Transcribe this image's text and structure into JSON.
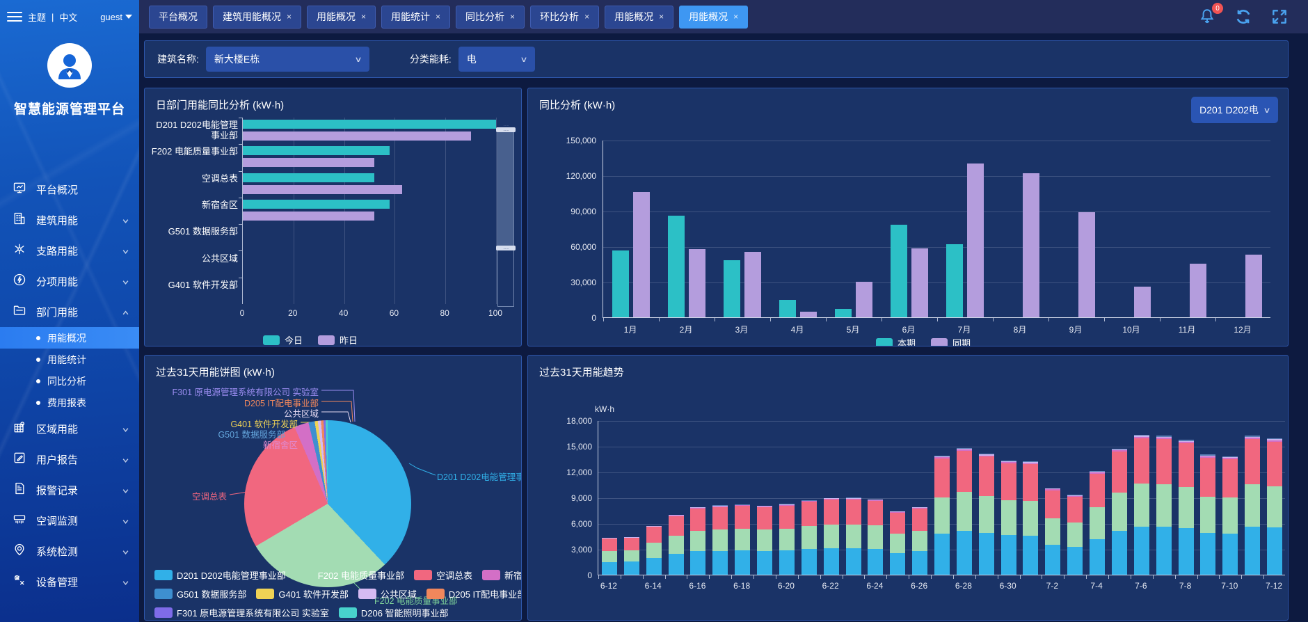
{
  "sidebar": {
    "title": "智慧能源管理平台",
    "theme_label": "主题",
    "lang_label": "中文",
    "user": "guest",
    "menu": [
      {
        "label": "平台概况",
        "icon": "monitor-icon",
        "chevron": null
      },
      {
        "label": "建筑用能",
        "icon": "building-icon",
        "chevron": "down"
      },
      {
        "label": "支路用能",
        "icon": "branch-icon",
        "chevron": "down"
      },
      {
        "label": "分项用能",
        "icon": "subitem-icon",
        "chevron": "down"
      },
      {
        "label": "部门用能",
        "icon": "folder-icon",
        "chevron": "up",
        "children": [
          {
            "label": "用能概况",
            "active": true
          },
          {
            "label": "用能统计",
            "active": false
          },
          {
            "label": "同比分析",
            "active": false
          },
          {
            "label": "费用报表",
            "active": false
          }
        ]
      },
      {
        "label": "区域用能",
        "icon": "region-icon",
        "chevron": "down"
      },
      {
        "label": "用户报告",
        "icon": "report-icon",
        "chevron": "down"
      },
      {
        "label": "报警记录",
        "icon": "record-icon",
        "chevron": "down"
      },
      {
        "label": "空调监测",
        "icon": "ac-icon",
        "chevron": "down"
      },
      {
        "label": "系统检测",
        "icon": "system-icon",
        "chevron": "down"
      },
      {
        "label": "设备管理",
        "icon": "device-icon",
        "chevron": "down"
      }
    ]
  },
  "topbar": {
    "tabs": [
      {
        "label": "平台概况",
        "closable": false,
        "active": false
      },
      {
        "label": "建筑用能概况",
        "closable": true,
        "active": false
      },
      {
        "label": "用能概况",
        "closable": true,
        "active": false
      },
      {
        "label": "用能统计",
        "closable": true,
        "active": false
      },
      {
        "label": "同比分析",
        "closable": true,
        "active": false
      },
      {
        "label": "环比分析",
        "closable": true,
        "active": false
      },
      {
        "label": "用能概况",
        "closable": true,
        "active": false
      },
      {
        "label": "用能概况",
        "closable": true,
        "active": true
      }
    ],
    "bell_badge": "0"
  },
  "filters": {
    "building_label": "建筑名称:",
    "building_value": "新大楼E栋",
    "energy_label": "分类能耗:",
    "energy_value": "电"
  },
  "colors": {
    "teal": "#2cc0c6",
    "purple": "#b49ddd",
    "accent_tab": "#3e97f2",
    "pie": [
      "#31b0e8",
      "#a3dcb3",
      "#f1677f",
      "#d36fc6",
      "#3e8fd0",
      "#f0d355",
      "#d5baf2",
      "#f0875c",
      "#7e6be8",
      "#48d2cc"
    ],
    "stack_extra": [
      "#d36fc6",
      "#cbb4ee",
      "#5b7fb5"
    ]
  },
  "chart_data": [
    {
      "id": "dept-today-vs-yesterday",
      "type": "bar",
      "orientation": "horizontal",
      "title": "日部门用能同比分析 (kW·h)",
      "categories": [
        "D201 D202电能管理事业部",
        "F202 电能质量事业部",
        "空调总表",
        "新宿舍区",
        "G501 数据服务部",
        "公共区域",
        "G401 软件开发部"
      ],
      "series": [
        {
          "name": "今日",
          "color": "#2cc0c6",
          "values": [
            100,
            58,
            52,
            58,
            0,
            0,
            0
          ]
        },
        {
          "name": "昨日",
          "color": "#b49ddd",
          "values": [
            90,
            52,
            63,
            52,
            0,
            0,
            0
          ]
        }
      ],
      "xlim": [
        0,
        100
      ],
      "xticks": [
        0,
        20,
        40,
        60,
        80,
        100
      ],
      "legend_position": "bottom",
      "grid": true
    },
    {
      "id": "year-on-year",
      "type": "bar",
      "orientation": "vertical",
      "title": "同比分析 (kW·h)",
      "selector_value": "D201 D202电",
      "categories": [
        "1月",
        "2月",
        "3月",
        "4月",
        "5月",
        "6月",
        "7月",
        "8月",
        "9月",
        "10月",
        "11月",
        "12月"
      ],
      "series": [
        {
          "name": "本期",
          "color": "#2cc0c6",
          "values": [
            56500,
            86000,
            48000,
            15000,
            7000,
            78500,
            61500,
            0,
            0,
            0,
            0,
            0
          ]
        },
        {
          "name": "同期",
          "color": "#b49ddd",
          "values": [
            106000,
            57500,
            55500,
            4500,
            30000,
            58000,
            130000,
            121500,
            89000,
            26000,
            45500,
            53000
          ]
        }
      ],
      "ylim": [
        0,
        150000
      ],
      "ystep": 30000,
      "legend_position": "bottom",
      "grid": true
    },
    {
      "id": "last-31-days-pie",
      "type": "pie",
      "title": "过去31天用能饼图 (kW·h)",
      "slices": [
        {
          "name": "D201 D202电能管理事业部",
          "percent": 38.0
        },
        {
          "name": "F202 电能质量事业部",
          "percent": 28.5
        },
        {
          "name": "空调总表",
          "percent": 27.0
        },
        {
          "name": "新宿舍区",
          "percent": 2.8
        },
        {
          "name": "G501 数据服务部",
          "percent": 1.2
        },
        {
          "name": "G401 软件开发部",
          "percent": 0.6
        },
        {
          "name": "公共区域",
          "percent": 0.6
        },
        {
          "name": "D205 IT配电事业部",
          "percent": 0.5
        },
        {
          "name": "F301 原电源管理系统有限公司 实验室",
          "percent": 0.4
        },
        {
          "name": "D206 智能照明事业部",
          "percent": 0.4
        }
      ],
      "callout_labels": [
        "F301 原电源管理系统有限公司 实验室",
        "D205 IT配电事业部",
        "公共区域",
        "G401 软件开发部",
        "G501 数据服务部",
        "新宿舍区",
        "空调总表",
        "D201 D202电能管理事业部",
        "F202 电能质量事业部"
      ],
      "legend_rows": [
        [
          "D201 D202电能管理事业部",
          "F202 电能质量事业部",
          "空调总表",
          "新宿舍区"
        ],
        [
          "G501 数据服务部",
          "G401 软件开发部",
          "公共区域",
          "D205 IT配电事业部"
        ],
        [
          "F301 原电源管理系统有限公司 实验室",
          "D206 智能照明事业部"
        ]
      ]
    },
    {
      "id": "last-31-days-trend",
      "type": "bar",
      "stacked": true,
      "title": "过去31天用能趋势",
      "unit": "kW·h",
      "x": [
        "6-12",
        "6-13",
        "6-14",
        "6-15",
        "6-16",
        "6-17",
        "6-18",
        "6-19",
        "6-20",
        "6-21",
        "6-22",
        "6-23",
        "6-24",
        "6-25",
        "6-26",
        "6-27",
        "6-28",
        "6-29",
        "6-30",
        "7-1",
        "7-2",
        "7-3",
        "7-4",
        "7-5",
        "7-6",
        "7-7",
        "7-8",
        "7-9",
        "7-10",
        "7-11",
        "7-12"
      ],
      "totals": [
        4300,
        4400,
        5700,
        7000,
        7900,
        8100,
        8200,
        8050,
        8250,
        8700,
        8950,
        9000,
        8800,
        7400,
        7900,
        13900,
        14800,
        14100,
        13300,
        13200,
        10100,
        9300,
        12100,
        14700,
        16300,
        16200,
        15700,
        14000,
        13800,
        16200,
        15900
      ],
      "stack_series_names": [
        "D201 D202电能管理事业部",
        "F202 电能质量事业部",
        "空调总表",
        "新宿舍区",
        "公共区域",
        "G501 数据服务部"
      ],
      "stack_fractions": [
        0.345,
        0.305,
        0.325,
        0.01,
        0.008,
        0.007
      ],
      "stack_colors": [
        "#31b0e8",
        "#a3dcb3",
        "#f1677f",
        "#d36fc6",
        "#cbb4ee",
        "#5b7fb5"
      ],
      "ylim": [
        0,
        18000
      ],
      "ystep": 3000,
      "xtick_every": 2,
      "grid": true
    }
  ]
}
